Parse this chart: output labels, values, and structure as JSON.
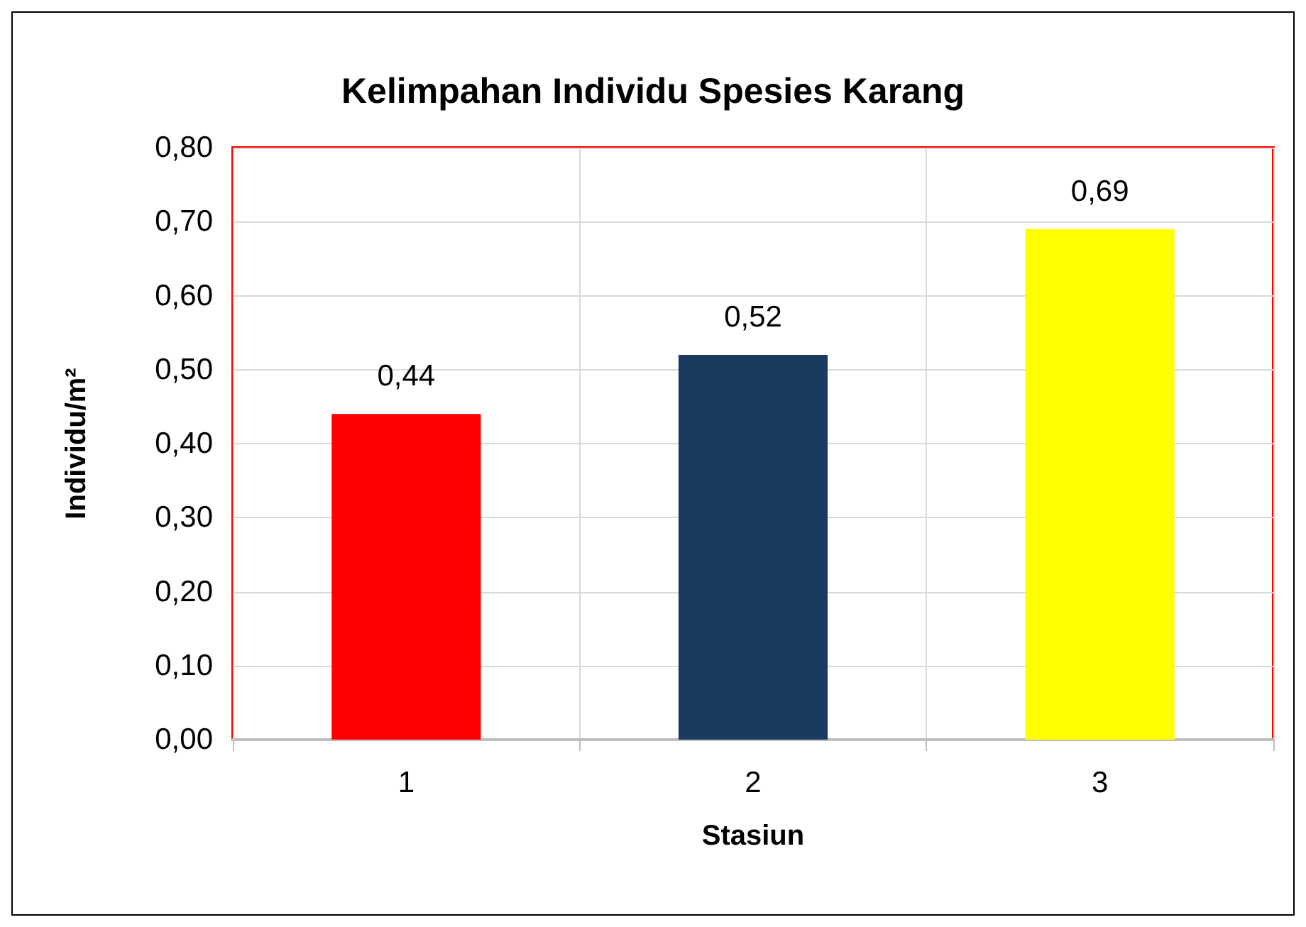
{
  "chart_data": {
    "type": "bar",
    "title": "Kelimpahan Individu Spesies Karang",
    "xlabel": "Stasiun",
    "ylabel": "Individu/m²",
    "categories": [
      "1",
      "2",
      "3"
    ],
    "values": [
      0.44,
      0.52,
      0.69
    ],
    "colors": [
      "#ff0000",
      "#1b3a5f",
      "#ffff00"
    ],
    "value_labels": [
      "0,44",
      "0,52",
      "0,69"
    ],
    "ylim": [
      0,
      0.8
    ],
    "yticks": [
      {
        "value": 0,
        "label": "0,00"
      },
      {
        "value": 0.1,
        "label": "0,10"
      },
      {
        "value": 0.2,
        "label": "0,20"
      },
      {
        "value": 0.3,
        "label": "0,30"
      },
      {
        "value": 0.4,
        "label": "0,40"
      },
      {
        "value": 0.5,
        "label": "0,50"
      },
      {
        "value": 0.6,
        "label": "0,60"
      },
      {
        "value": 0.7,
        "label": "0,70"
      },
      {
        "value": 0.8,
        "label": "0,80"
      }
    ],
    "grid": true
  }
}
